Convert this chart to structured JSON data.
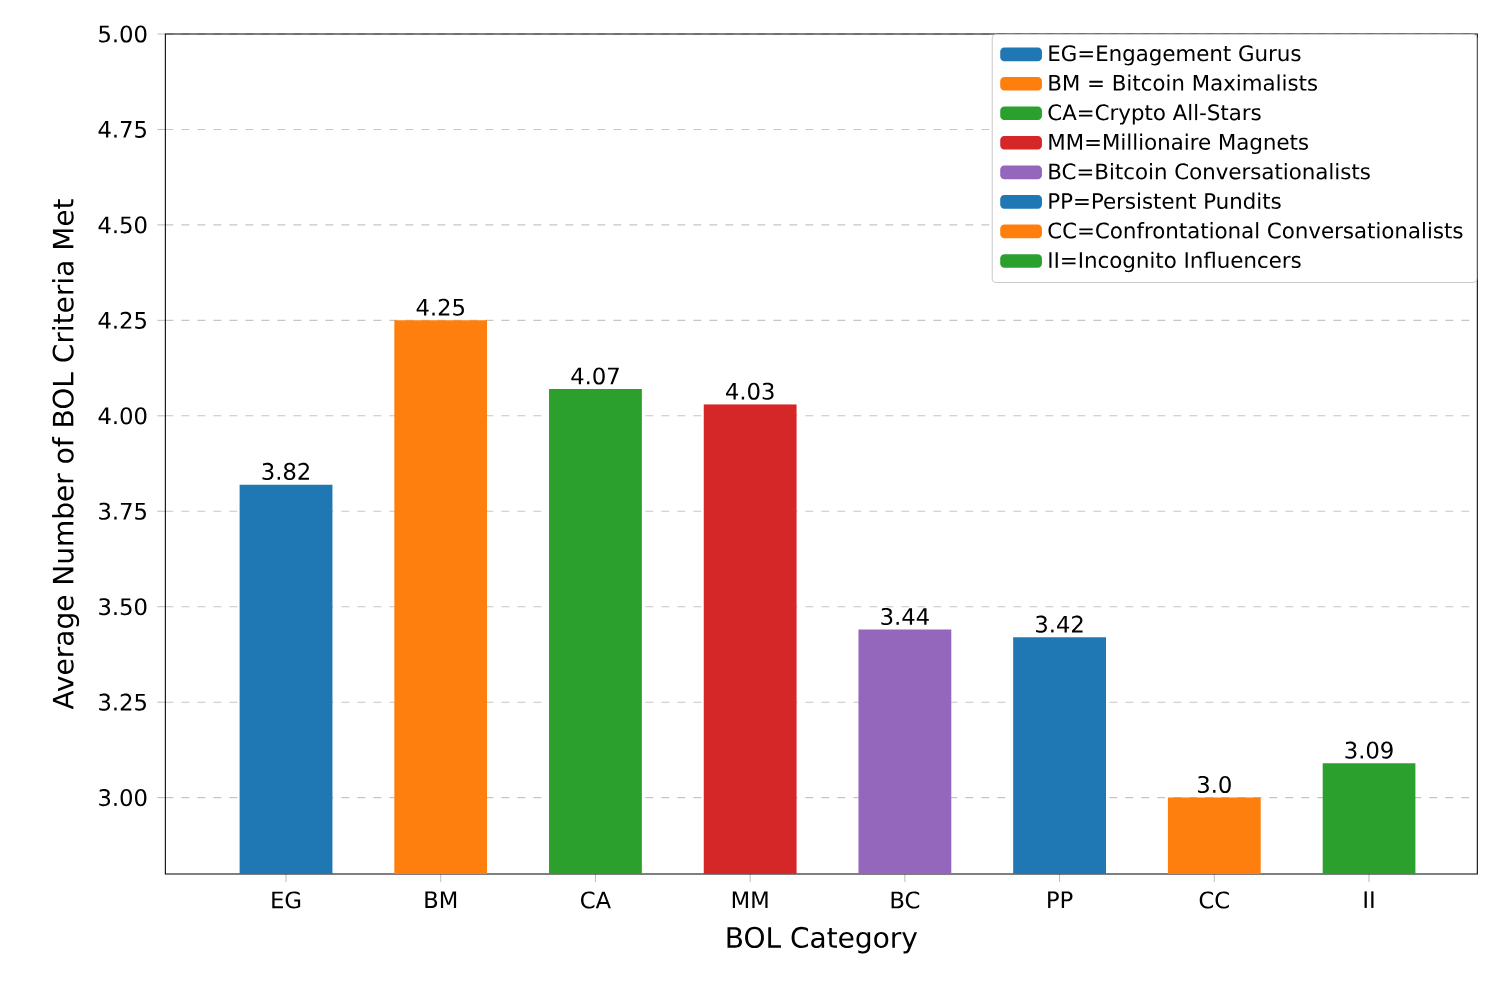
{
  "chart_data": {
    "type": "bar",
    "xlabel": "BOL Category",
    "ylabel": "Average Number of BOL Criteria Met",
    "categories": [
      "EG",
      "BM",
      "CA",
      "MM",
      "BC",
      "PP",
      "CC",
      "II"
    ],
    "series": [
      {
        "name": "EG=Engagement Gurus",
        "color": "#1f77b4",
        "values": [
          3.82,
          null,
          null,
          null,
          null,
          null,
          null,
          null
        ],
        "value_labels": [
          "3.82",
          null,
          null,
          null,
          null,
          null,
          null,
          null
        ]
      },
      {
        "name": "BM = Bitcoin Maximalists",
        "color": "#ff7f0e",
        "values": [
          null,
          4.25,
          null,
          null,
          null,
          null,
          null,
          null
        ],
        "value_labels": [
          null,
          "4.25",
          null,
          null,
          null,
          null,
          null,
          null
        ]
      },
      {
        "name": "CA=Crypto All-Stars",
        "color": "#2ca02c",
        "values": [
          null,
          null,
          4.07,
          null,
          null,
          null,
          null,
          null
        ],
        "value_labels": [
          null,
          null,
          "4.07",
          null,
          null,
          null,
          null,
          null
        ]
      },
      {
        "name": "MM=Millionaire Magnets",
        "color": "#d62728",
        "values": [
          null,
          null,
          null,
          4.03,
          null,
          null,
          null,
          null
        ],
        "value_labels": [
          null,
          null,
          null,
          "4.03",
          null,
          null,
          null,
          null
        ]
      },
      {
        "name": "BC=Bitcoin Conversationalists",
        "color": "#9467bd",
        "values": [
          null,
          null,
          null,
          null,
          3.44,
          null,
          null,
          null
        ],
        "value_labels": [
          null,
          null,
          null,
          null,
          "3.44",
          null,
          null,
          null
        ]
      },
      {
        "name": "PP=Persistent Pundits",
        "color": "#1f77b4",
        "values": [
          null,
          null,
          null,
          null,
          null,
          3.42,
          null,
          null
        ],
        "value_labels": [
          null,
          null,
          null,
          null,
          null,
          "3.42",
          null,
          null
        ]
      },
      {
        "name": "CC=Confrontational Conversationalists",
        "color": "#ff7f0e",
        "values": [
          null,
          null,
          null,
          null,
          null,
          null,
          3.0,
          null
        ],
        "value_labels": [
          null,
          null,
          null,
          null,
          null,
          null,
          "3.0",
          null
        ]
      },
      {
        "name": "II=Incognito Influencers",
        "color": "#2ca02c",
        "values": [
          null,
          null,
          null,
          null,
          null,
          null,
          null,
          3.09
        ],
        "value_labels": [
          null,
          null,
          null,
          null,
          null,
          null,
          null,
          "3.09"
        ]
      }
    ],
    "ylim": [
      2.8,
      5.0
    ],
    "yticks": [
      {
        "value": 3.0,
        "label": "3.00"
      },
      {
        "value": 3.25,
        "label": "3.25"
      },
      {
        "value": 3.5,
        "label": "3.50"
      },
      {
        "value": 3.75,
        "label": "3.75"
      },
      {
        "value": 4.0,
        "label": "4.00"
      },
      {
        "value": 4.25,
        "label": "4.25"
      },
      {
        "value": 4.5,
        "label": "4.50"
      },
      {
        "value": 4.75,
        "label": "4.75"
      },
      {
        "value": 5.0,
        "label": "5.00"
      }
    ],
    "grid": "y",
    "legend": "top right"
  }
}
